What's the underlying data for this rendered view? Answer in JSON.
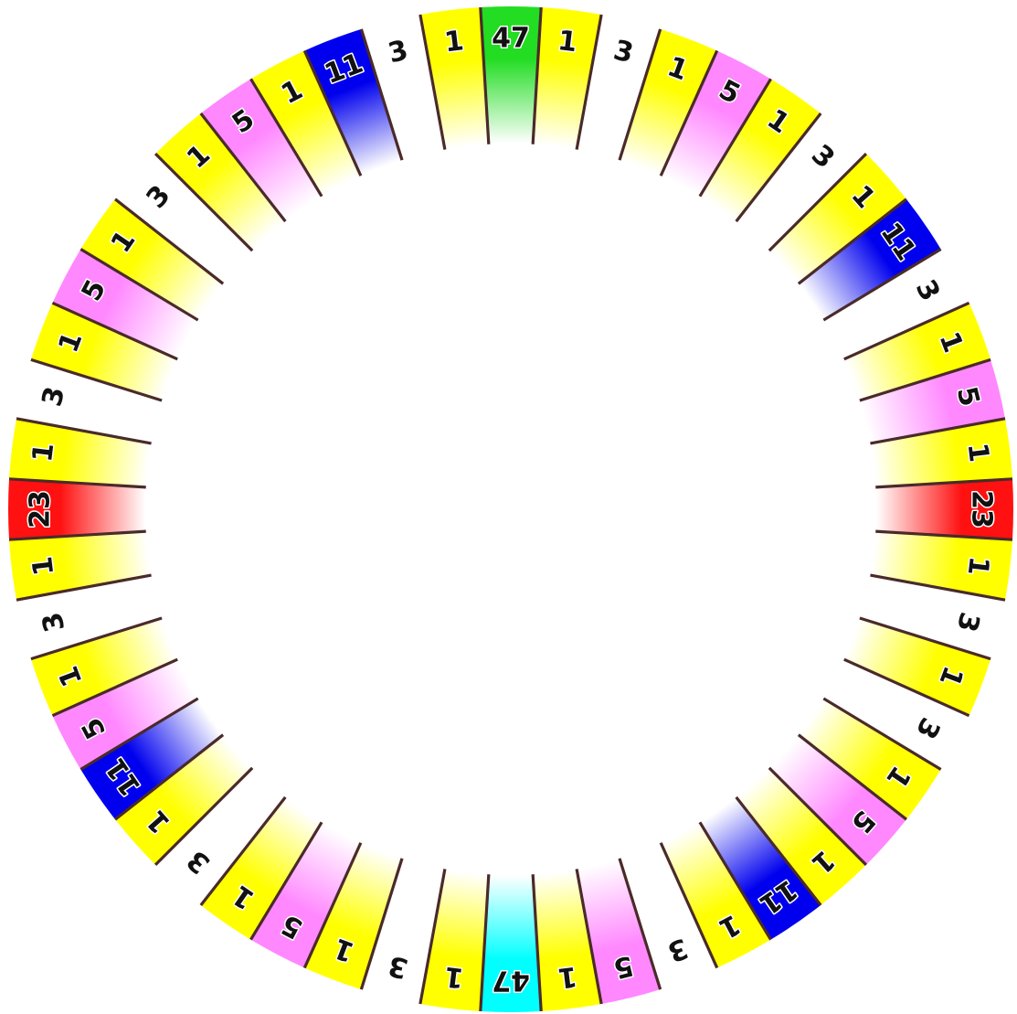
{
  "wheel": {
    "segments": [
      {
        "label": "47",
        "color": "#22dd22"
      },
      {
        "label": "1",
        "color": "#ffff00"
      },
      {
        "label": "3",
        "color": "#ffffff"
      },
      {
        "label": "1",
        "color": "#ffff00"
      },
      {
        "label": "5",
        "color": "#ff88ff"
      },
      {
        "label": "1",
        "color": "#ffff00"
      },
      {
        "label": "3",
        "color": "#ffffff"
      },
      {
        "label": "1",
        "color": "#ffff00"
      },
      {
        "label": "11",
        "color": "#0000ee"
      },
      {
        "label": "3",
        "color": "#ffffff"
      },
      {
        "label": "1",
        "color": "#ffff00"
      },
      {
        "label": "5",
        "color": "#ff88ff"
      },
      {
        "label": "1",
        "color": "#ffff00"
      },
      {
        "label": "23",
        "color": "#ff1111"
      },
      {
        "label": "1",
        "color": "#ffff00"
      },
      {
        "label": "3",
        "color": "#ffffff"
      },
      {
        "label": "1",
        "color": "#ffff00"
      },
      {
        "label": "3",
        "color": "#ffffff"
      },
      {
        "label": "1",
        "color": "#ffff00"
      },
      {
        "label": "5",
        "color": "#ff88ff"
      },
      {
        "label": "1",
        "color": "#ffff00"
      },
      {
        "label": "11",
        "color": "#0000ee"
      },
      {
        "label": "1",
        "color": "#ffff00"
      },
      {
        "label": "3",
        "color": "#ffffff"
      },
      {
        "label": "5",
        "color": "#ff88ff"
      },
      {
        "label": "1",
        "color": "#ffff00"
      },
      {
        "label": "47",
        "color": "#00ffff"
      },
      {
        "label": "1",
        "color": "#ffff00"
      },
      {
        "label": "3",
        "color": "#ffffff"
      },
      {
        "label": "1",
        "color": "#ffff00"
      },
      {
        "label": "5",
        "color": "#ff88ff"
      },
      {
        "label": "1",
        "color": "#ffff00"
      },
      {
        "label": "3",
        "color": "#ffffff"
      },
      {
        "label": "1",
        "color": "#ffff00"
      },
      {
        "label": "11",
        "color": "#0000ee"
      },
      {
        "label": "5",
        "color": "#ff88ff"
      },
      {
        "label": "1",
        "color": "#ffff00"
      },
      {
        "label": "3",
        "color": "#ffffff"
      },
      {
        "label": "1",
        "color": "#ffff00"
      },
      {
        "label": "23",
        "color": "#ff1111"
      },
      {
        "label": "1",
        "color": "#ffff00"
      },
      {
        "label": "3",
        "color": "#ffffff"
      },
      {
        "label": "1",
        "color": "#ffff00"
      },
      {
        "label": "5",
        "color": "#ff88ff"
      },
      {
        "label": "1",
        "color": "#ffff00"
      },
      {
        "label": "3",
        "color": "#ffffff"
      },
      {
        "label": "1",
        "color": "#ffff00"
      },
      {
        "label": "5",
        "color": "#ff88ff"
      },
      {
        "label": "1",
        "color": "#ffff00"
      },
      {
        "label": "11",
        "color": "#0000ee"
      },
      {
        "label": "3",
        "color": "#ffffff"
      },
      {
        "label": "1",
        "color": "#ffff00"
      }
    ],
    "divider_color": "#4a2a2a"
  }
}
